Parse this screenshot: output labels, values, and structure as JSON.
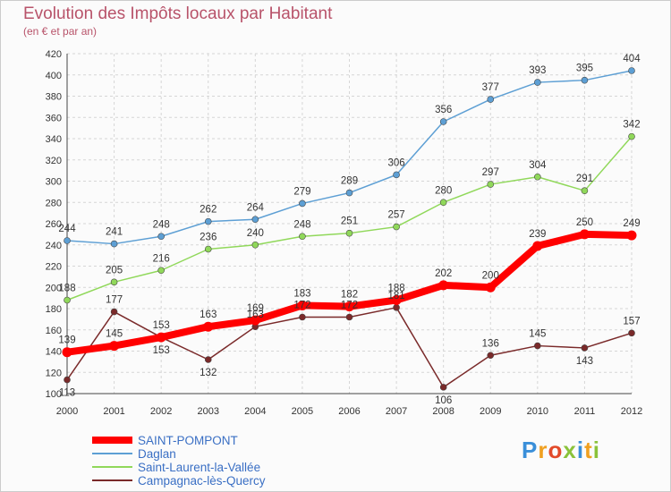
{
  "header": {
    "title": "Evolution des Impôts locaux par Habitant",
    "subtitle": "(en € et par an)"
  },
  "logo": {
    "letters": [
      "P",
      "r",
      "o",
      "x",
      "i",
      "t",
      "i"
    ],
    "colors": [
      "#3a8fd9",
      "#f0a020",
      "#e24a2a",
      "#8ac23a",
      "#3a8fd9",
      "#f0a020",
      "#8ac23a"
    ]
  },
  "chart_data": {
    "type": "line",
    "title": "Evolution des Impôts locaux par Habitant",
    "subtitle": "(en € et par an)",
    "xlabel": "",
    "ylabel": "",
    "x": [
      "2000",
      "2001",
      "2002",
      "2003",
      "2004",
      "2005",
      "2006",
      "2007",
      "2008",
      "2009",
      "2010",
      "2011",
      "2012"
    ],
    "ylim": [
      100,
      420
    ],
    "yticks": [
      100,
      120,
      140,
      160,
      180,
      200,
      220,
      240,
      260,
      280,
      300,
      320,
      340,
      360,
      380,
      400,
      420
    ],
    "grid": true,
    "legend_position": "bottom-left",
    "series": [
      {
        "name": "SAINT-POMPONT",
        "color": "#ff0000",
        "values": [
          139,
          145,
          153,
          163,
          169,
          183,
          182,
          188,
          202,
          200,
          239,
          250,
          249
        ]
      },
      {
        "name": "Daglan",
        "color": "#5d9fd4",
        "values": [
          244,
          241,
          248,
          262,
          264,
          279,
          289,
          306,
          356,
          377,
          393,
          395,
          404
        ]
      },
      {
        "name": "Saint-Laurent-la-Vallée",
        "color": "#90d85a",
        "values": [
          188,
          205,
          216,
          236,
          240,
          248,
          251,
          257,
          280,
          297,
          304,
          291,
          342
        ]
      },
      {
        "name": "Campagnac-lès-Quercy",
        "color": "#7a2a2a",
        "values": [
          113,
          177,
          153,
          132,
          163,
          172,
          172,
          181,
          106,
          136,
          145,
          143,
          157
        ]
      }
    ]
  }
}
